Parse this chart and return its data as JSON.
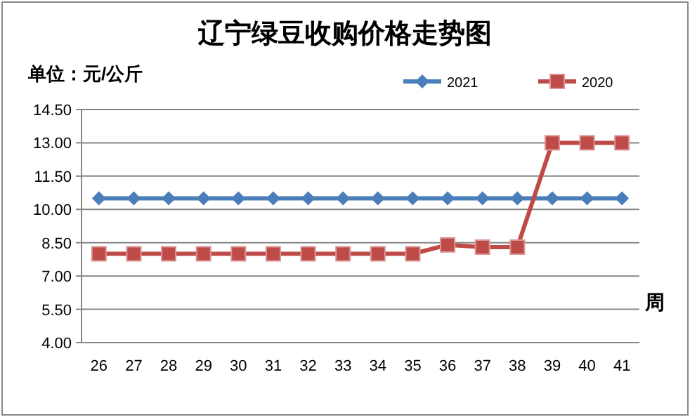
{
  "chart_data": {
    "type": "line",
    "title": "辽宁绿豆收购价格走势图",
    "ylabel": "单位：元/公斤",
    "xlabel": "周",
    "categories": [
      "26",
      "27",
      "28",
      "29",
      "30",
      "31",
      "32",
      "33",
      "34",
      "35",
      "36",
      "37",
      "38",
      "39",
      "40",
      "41"
    ],
    "series": [
      {
        "name": "2021",
        "color": "#4a7ebb",
        "marker": "diamond",
        "values": [
          10.5,
          10.5,
          10.5,
          10.5,
          10.5,
          10.5,
          10.5,
          10.5,
          10.5,
          10.5,
          10.5,
          10.5,
          10.5,
          10.5,
          10.5,
          10.5
        ]
      },
      {
        "name": "2020",
        "color": "#be4b48",
        "marker": "square",
        "values": [
          8.0,
          8.0,
          8.0,
          8.0,
          8.0,
          8.0,
          8.0,
          8.0,
          8.0,
          8.0,
          8.4,
          8.3,
          8.3,
          13.0,
          13.0,
          13.0
        ]
      }
    ],
    "ylim": [
      4,
      14.5
    ],
    "yticks": [
      {
        "value": 4,
        "label": "4.00"
      },
      {
        "value": 5.5,
        "label": "5.50"
      },
      {
        "value": 7,
        "label": "7.00"
      },
      {
        "value": 8.5,
        "label": "8.50"
      },
      {
        "value": 10,
        "label": "10.00"
      },
      {
        "value": 11.5,
        "label": "11.50"
      },
      {
        "value": 13,
        "label": "13.00"
      },
      {
        "value": 14.5,
        "label": "14.50"
      }
    ],
    "grid": "y",
    "legend": "top right"
  }
}
